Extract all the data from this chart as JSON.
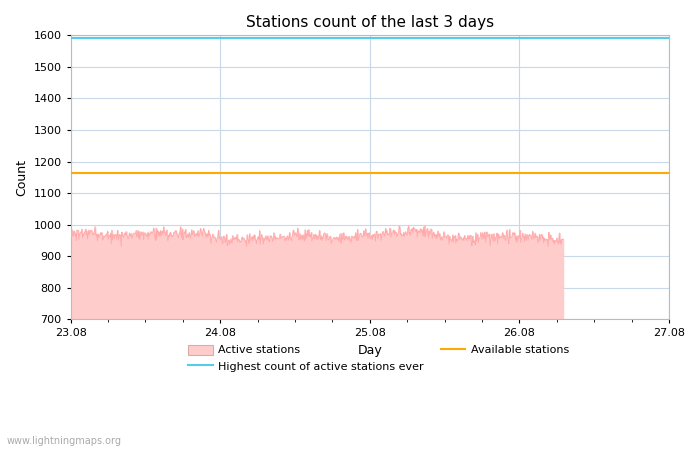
{
  "title": "Stations count of the last 3 days",
  "xlabel": "Day",
  "ylabel": "Count",
  "ylim": [
    700,
    1600
  ],
  "xlim_start": 0,
  "xlim_end": 96,
  "yticks": [
    700,
    800,
    900,
    1000,
    1100,
    1200,
    1300,
    1400,
    1500,
    1600
  ],
  "xtick_positions": [
    0,
    24,
    48,
    72,
    96
  ],
  "xtick_labels": [
    "23.08",
    "24.08",
    "25.08",
    "26.08",
    "27.08"
  ],
  "highest_ever_value": 1590,
  "available_stations_value": 1165,
  "active_stations_mean": 963,
  "active_stations_noise": 10,
  "active_fill_color": "#ffcccc",
  "active_line_color": "#ffaaaa",
  "highest_line_color": "#55ccee",
  "available_line_color": "#ffaa00",
  "background_color": "#ffffff",
  "grid_color": "#c8d8e8",
  "watermark": "www.lightningmaps.org",
  "title_fontsize": 11,
  "label_fontsize": 9,
  "tick_fontsize": 8,
  "legend_fontsize": 8,
  "data_end_x": 79,
  "active_stations_seed": 1234
}
